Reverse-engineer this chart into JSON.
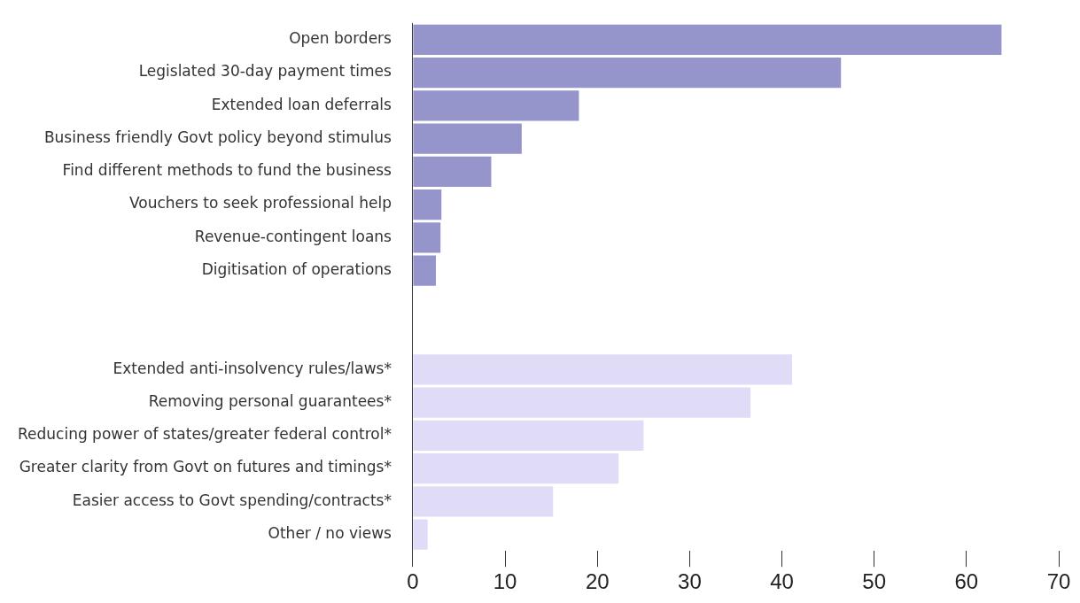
{
  "chart_data": {
    "type": "bar",
    "orientation": "horizontal",
    "categories": [
      "Open borders",
      "Legislated 30-day payment times",
      "Extended loan deferrals",
      "Business friendly Govt policy beyond stimulus",
      "Find different methods to fund the business",
      "Vouchers to seek professional help",
      "Revenue-contingent loans",
      "Digitisation of operations",
      null,
      null,
      "Extended anti-insolvency rules/laws*",
      "Removing personal guarantees*",
      "Reducing power of states/greater federal control*",
      "Greater clarity from Govt on futures and timings*",
      "Easier access to Govt spending/contracts*",
      "Other / no views"
    ],
    "values": [
      63.8,
      46.4,
      18,
      11.8,
      8.5,
      3.1,
      3,
      2.5,
      null,
      null,
      41.1,
      36.6,
      25,
      22.3,
      15.2,
      1.6
    ],
    "colors": [
      "#9595cc",
      "#9595cc",
      "#9595cc",
      "#9595cc",
      "#9595cc",
      "#9595cc",
      "#9595cc",
      "#9595cc",
      "#9595cc",
      "#9595cc",
      "#e0dcf8",
      "#e0dcf8",
      "#e0dcf8",
      "#e0dcf8",
      "#e0dcf8",
      "#e0dcf8"
    ],
    "xlim": [
      0,
      70
    ],
    "xticks": [
      0,
      10,
      20,
      30,
      40,
      50,
      60,
      70
    ],
    "grid": false,
    "legend": false
  }
}
